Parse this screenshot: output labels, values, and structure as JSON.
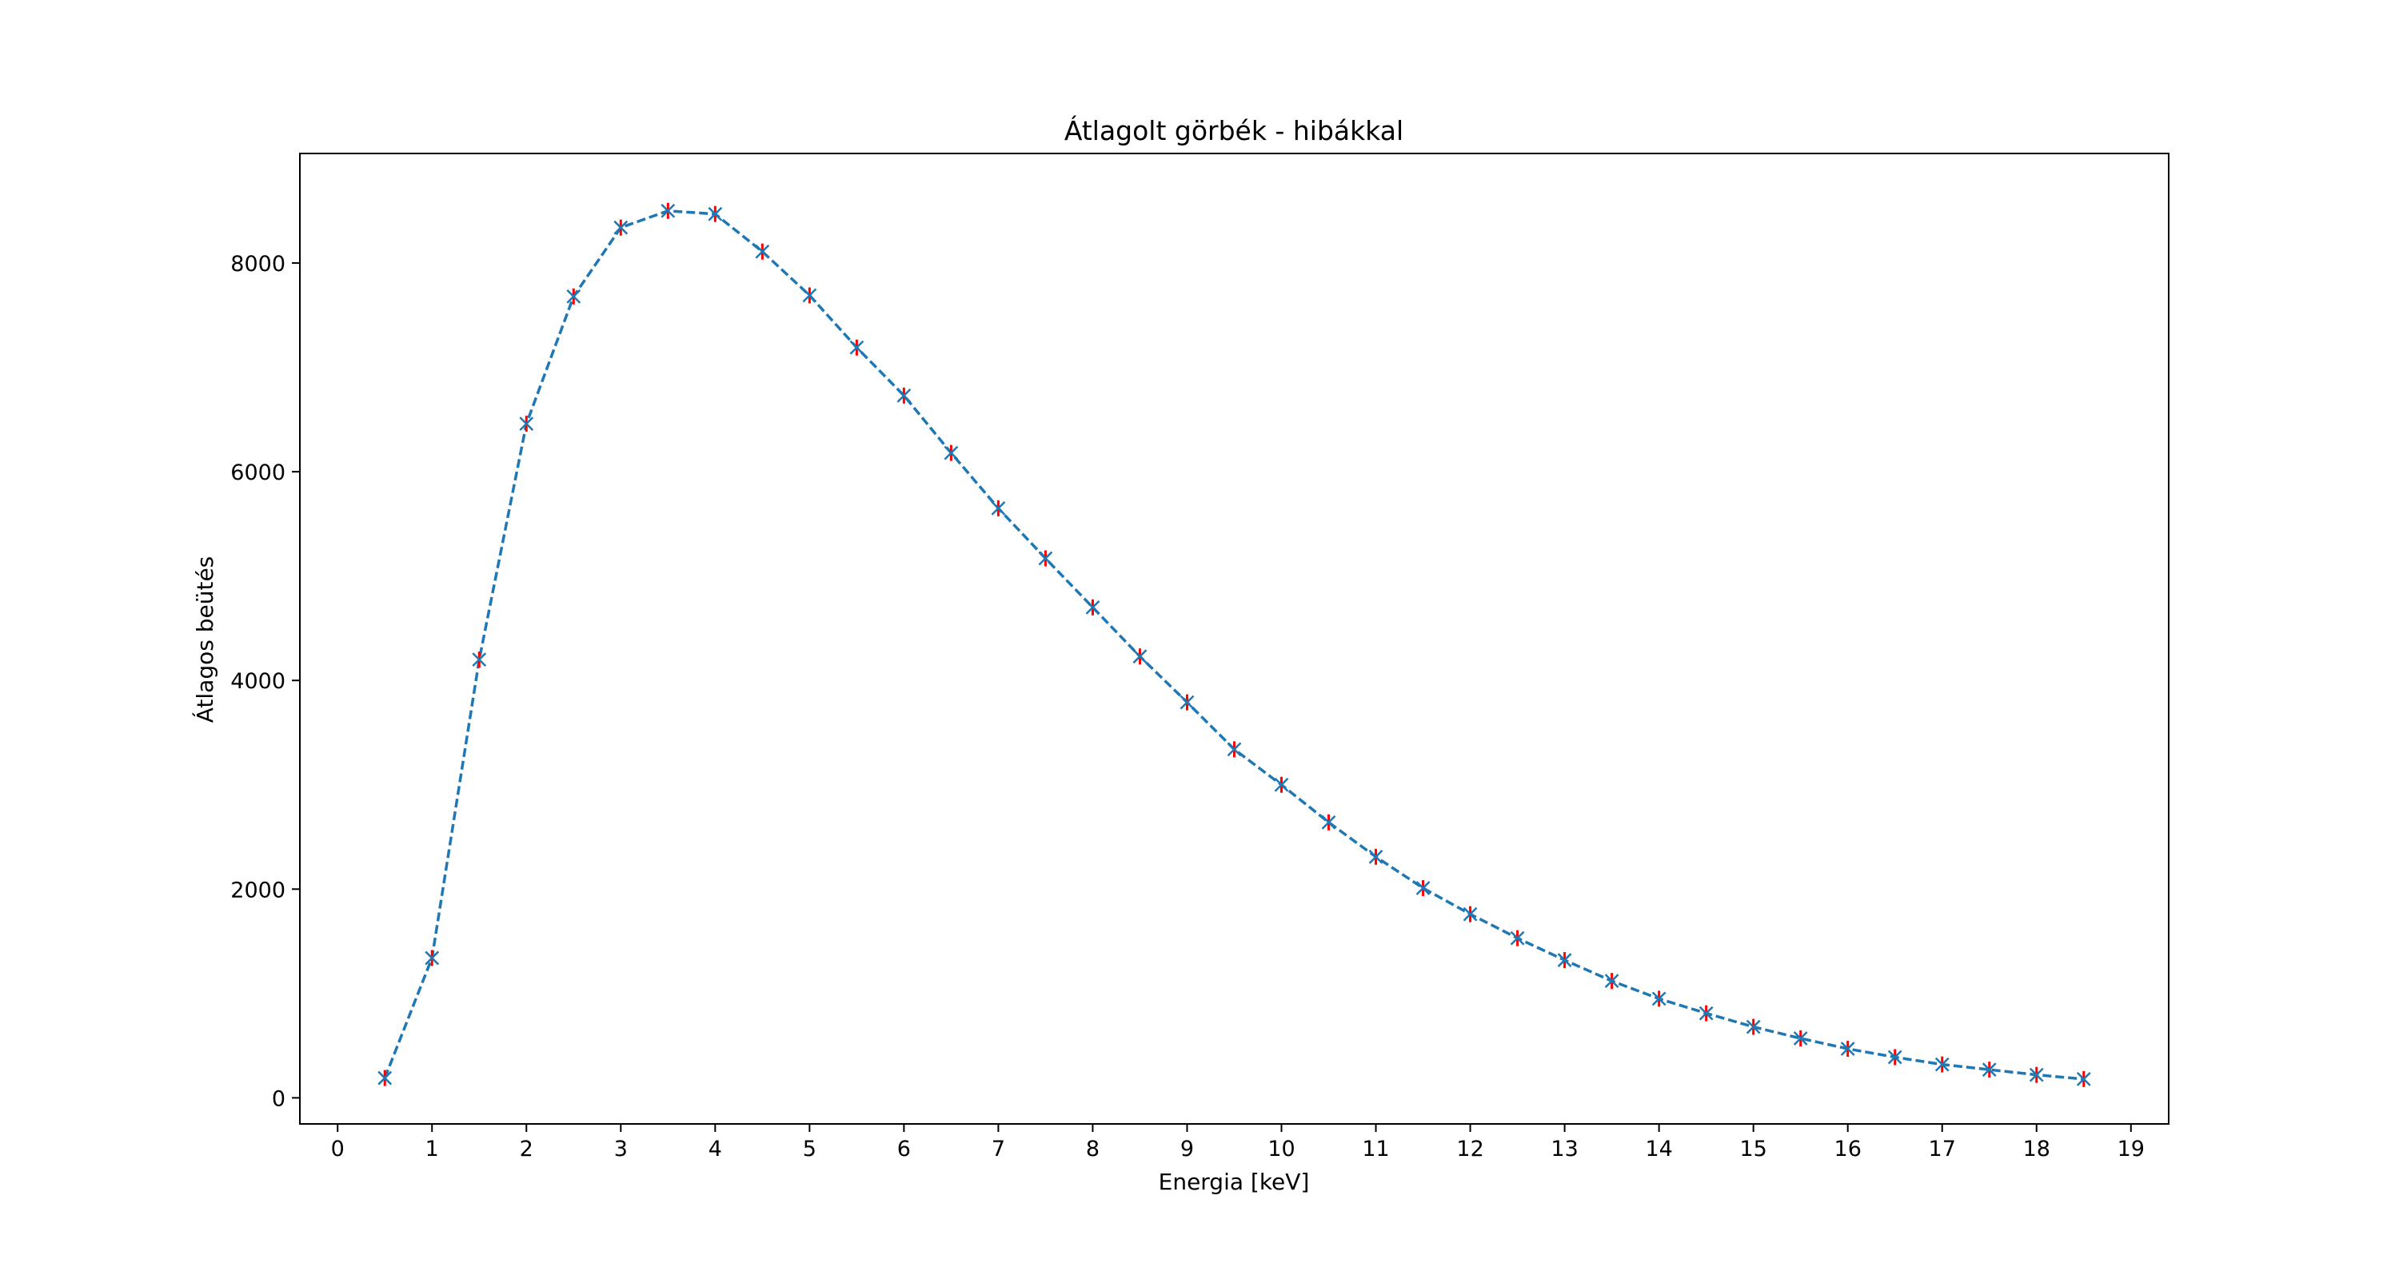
{
  "chart_data": {
    "type": "line",
    "title": "Átlagolt görbék - hibákkal",
    "xlabel": "Energia [keV]",
    "ylabel": "Átlagos beütés",
    "xlim": [
      -0.4,
      19.4
    ],
    "ylim": [
      -250,
      9050
    ],
    "xticks": [
      0,
      1,
      2,
      3,
      4,
      5,
      6,
      7,
      8,
      9,
      10,
      11,
      12,
      13,
      14,
      15,
      16,
      17,
      18,
      19
    ],
    "yticks": [
      0,
      2000,
      4000,
      6000,
      8000
    ],
    "grid": false,
    "line_style": "dashed",
    "marker": "x",
    "series": [
      {
        "color": "#1f77b4",
        "x": [
          0.5,
          1,
          1.5,
          2,
          2.5,
          3,
          3.5,
          4,
          4.5,
          5,
          5.5,
          6,
          6.5,
          7,
          7.5,
          8,
          8.5,
          9,
          9.5,
          10,
          10.5,
          11,
          11.5,
          12,
          12.5,
          13,
          13.5,
          14,
          14.5,
          15,
          15.5,
          16,
          16.5,
          17,
          17.5,
          18,
          18.5
        ],
        "y": [
          190,
          1340,
          4200,
          6460,
          7680,
          8340,
          8500,
          8470,
          8110,
          7690,
          7190,
          6730,
          6180,
          5650,
          5170,
          4700,
          4230,
          3790,
          3340,
          3000,
          2640,
          2310,
          2010,
          1760,
          1530,
          1320,
          1120,
          950,
          810,
          680,
          570,
          470,
          390,
          320,
          270,
          220,
          180
        ],
        "yerr": [
          5,
          10,
          20,
          45,
          40,
          30,
          60,
          60,
          60,
          45,
          40,
          45,
          25,
          20,
          20,
          15,
          15,
          10,
          10,
          10,
          8,
          8,
          5,
          5,
          5,
          5,
          5,
          5,
          5,
          5,
          4,
          4,
          4,
          3,
          3,
          3,
          3
        ],
        "error_color": "#ff0000"
      }
    ]
  }
}
